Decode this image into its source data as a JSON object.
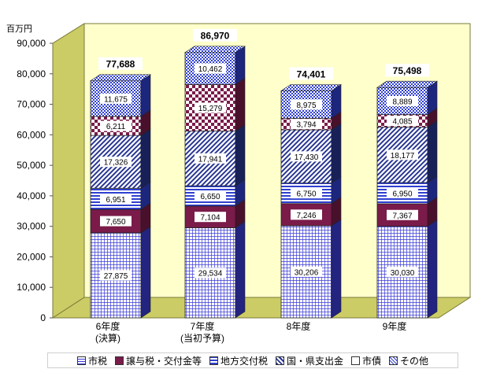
{
  "chart_data": {
    "type": "bar",
    "stacked": true,
    "unit_label": "百万円",
    "categories": [
      [
        "6年度",
        "(決算)"
      ],
      [
        "7年度",
        "(当初予算)"
      ],
      [
        "8年度"
      ],
      [
        "9年度"
      ]
    ],
    "ylim": [
      0,
      90000
    ],
    "yticks": [
      "0",
      "10,000",
      "20,000",
      "30,000",
      "40,000",
      "50,000",
      "60,000",
      "70,000",
      "80,000",
      "90,000"
    ],
    "totals": [
      "77,688",
      "86,970",
      "74,401",
      "75,498"
    ],
    "total_values": [
      77688,
      86970,
      74401,
      75498
    ],
    "series": [
      {
        "name": "市税",
        "values": [
          27875,
          29534,
          30206,
          30030
        ],
        "labels": [
          "27,875",
          "29,534",
          "30,206",
          "30,030"
        ],
        "color": "#3a3ad6"
      },
      {
        "name": "譲与税・交付金等",
        "values": [
          7650,
          7104,
          7246,
          7367
        ],
        "labels": [
          "7,650",
          "7,104",
          "7,246",
          "7,367"
        ],
        "color": "#7a1b4a"
      },
      {
        "name": "地方交付税",
        "values": [
          6951,
          6650,
          6750,
          6950
        ],
        "labels": [
          "6,951",
          "6,650",
          "6,750",
          "6,950"
        ],
        "color": "#2f3fd0"
      },
      {
        "name": "国・県支出金",
        "values": [
          17326,
          17941,
          17430,
          18177
        ],
        "labels": [
          "17,326",
          "17,941",
          "17,430",
          "18,177"
        ],
        "color": "#283593"
      },
      {
        "name": "市債",
        "values": [
          6211,
          15279,
          3794,
          4085
        ],
        "labels": [
          "6,211",
          "15,279",
          "3,794",
          "4,085"
        ],
        "color": "#7a1b4a"
      },
      {
        "name": "その他",
        "values": [
          11675,
          10462,
          8975,
          8889
        ],
        "labels": [
          "11,675",
          "10,462",
          "8,975",
          "8,889"
        ],
        "color": "#2f3fd0"
      }
    ],
    "legend_position": "bottom",
    "grid": false
  }
}
